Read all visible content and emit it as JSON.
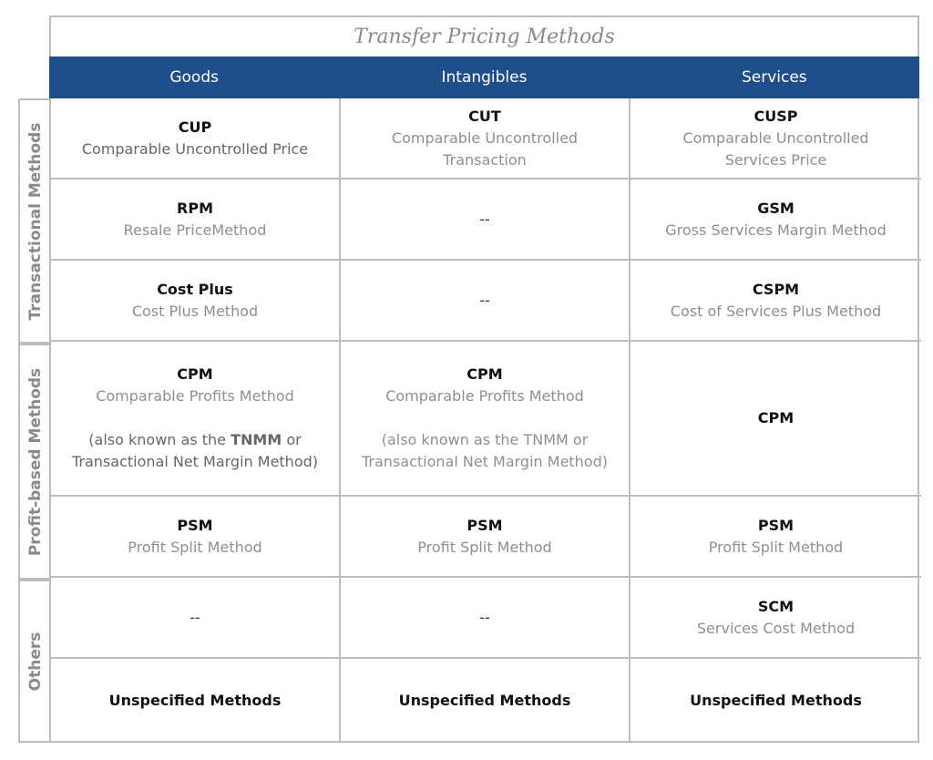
{
  "title": "Transfer Pricing Methods",
  "columns": [
    "Goods",
    "Intangibles",
    "Services"
  ],
  "groups": [
    "Transactional Methods",
    "Profit-based Methods",
    "Others"
  ],
  "rows": [
    {
      "goods": {
        "abbr": "CUP",
        "desc": "Comparable Uncontrolled Price"
      },
      "intangibles": {
        "abbr": "CUT",
        "desc1": "Comparable Uncontrolled",
        "desc2": "Transaction"
      },
      "services": {
        "abbr": "CUSP",
        "desc1": "Comparable Uncontrolled",
        "desc2": "Services Price"
      }
    },
    {
      "goods": {
        "abbr": "RPM",
        "desc": "Resale PriceMethod"
      },
      "intangibles": {
        "text": "--"
      },
      "services": {
        "abbr": "GSM",
        "desc": "Gross Services Margin Method"
      }
    },
    {
      "goods": {
        "abbr": "Cost Plus",
        "desc": "Cost Plus Method"
      },
      "intangibles": {
        "text": "--"
      },
      "services": {
        "abbr": "CSPM",
        "desc": "Cost of Services Plus Method"
      }
    },
    {
      "goods": {
        "abbr": "CPM",
        "desc": "Comparable Profits Method",
        "note_pre": "(also known as the ",
        "note_bold": "TNMM",
        "note_post": " or",
        "note2": "Transactional Net Margin Method)"
      },
      "intangibles": {
        "abbr": "CPM",
        "desc": "Comparable Profits Method",
        "note1": "(also known as the TNMM or",
        "note2": "Transactional Net Margin Method)"
      },
      "services": {
        "abbr": "CPM"
      }
    },
    {
      "goods": {
        "abbr": "PSM",
        "desc": "Profit Split Method"
      },
      "intangibles": {
        "abbr": "PSM",
        "desc": "Profit Split Method"
      },
      "services": {
        "abbr": "PSM",
        "desc": "Profit Split Method"
      }
    },
    {
      "goods": {
        "text": "--"
      },
      "intangibles": {
        "text": "--"
      },
      "services": {
        "abbr": "SCM",
        "desc": "Services Cost Method"
      }
    },
    {
      "goods": {
        "abbr": "Unspecified Methods"
      },
      "intangibles": {
        "abbr": "Unspecified Methods"
      },
      "services": {
        "abbr": "Unspecified Methods"
      }
    }
  ]
}
